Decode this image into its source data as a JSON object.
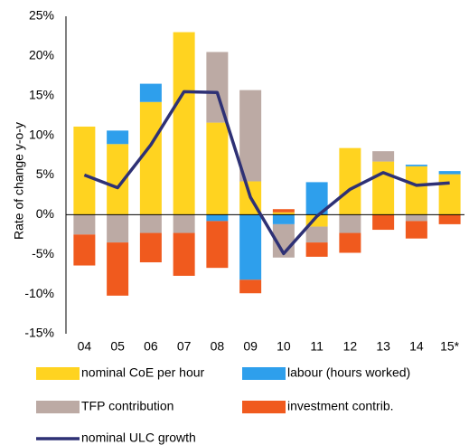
{
  "chart_data": {
    "type": "bar",
    "y_label": "Rate of change y-o-y",
    "categories": [
      "04",
      "05",
      "06",
      "07",
      "08",
      "09",
      "10",
      "11",
      "12",
      "13",
      "14",
      "15*"
    ],
    "series": [
      {
        "name": "nominal CoE per hour",
        "color": "#ffd320",
        "values": [
          11.1,
          8.9,
          14.2,
          23.0,
          11.6,
          4.2,
          0.3,
          -1.5,
          8.4,
          6.7,
          6.1,
          5.1
        ]
      },
      {
        "name": "labour (hours worked)",
        "color": "#2e9fec",
        "values": [
          0,
          1.7,
          2.3,
          0,
          -0.8,
          -8.2,
          -1.2,
          4.1,
          0,
          0,
          0.2,
          0.4
        ]
      },
      {
        "name": "TFP contribution",
        "color": "#bcaaa4",
        "values": [
          -2.5,
          -3.5,
          -2.3,
          -2.3,
          8.9,
          11.5,
          -4.2,
          -2.0,
          -2.3,
          1.3,
          -0.8,
          0
        ]
      },
      {
        "name": "investment contrib.",
        "color": "#f05a1e",
        "values": [
          -3.9,
          -6.7,
          -3.7,
          -5.4,
          -5.9,
          -1.7,
          0.4,
          -1.8,
          -2.5,
          -1.9,
          -2.2,
          -1.2
        ]
      },
      {
        "name": "nominal ULC growth",
        "type": "line",
        "color": "#2e3175",
        "values": [
          5.0,
          3.4,
          8.8,
          15.5,
          15.4,
          2.2,
          -4.9,
          -0.2,
          3.2,
          5.3,
          3.7,
          4.0
        ]
      }
    ],
    "ylim": [
      -15,
      25
    ],
    "yticks": [
      {
        "value": -15,
        "label": "-15%"
      },
      {
        "value": -10,
        "label": "-10%"
      },
      {
        "value": -5,
        "label": "-5%"
      },
      {
        "value": 0,
        "label": "0%"
      },
      {
        "value": 5,
        "label": "5%"
      },
      {
        "value": 10,
        "label": "10%"
      },
      {
        "value": 15,
        "label": "15%"
      },
      {
        "value": 20,
        "label": "20%"
      },
      {
        "value": 25,
        "label": "25%"
      }
    ]
  }
}
